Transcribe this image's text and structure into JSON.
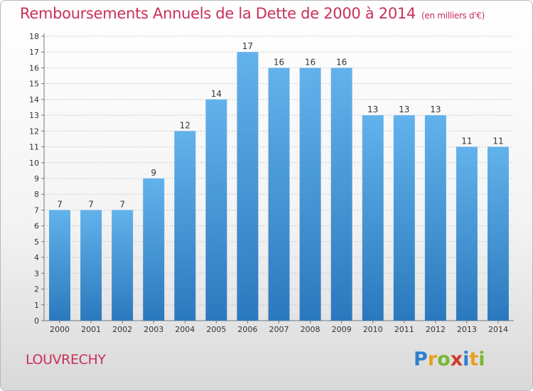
{
  "title": "Remboursements Annuels de la Dette de 2000 à 2014",
  "unit": "(en milliers d'€)",
  "town": "LOUVRECHY",
  "logo": {
    "letters": [
      {
        "ch": "P",
        "color": "#2f7fd0"
      },
      {
        "ch": "r",
        "color": "#e8a020"
      },
      {
        "ch": "o",
        "color": "#7ab830"
      },
      {
        "ch": "x",
        "color": "#d23a2a"
      },
      {
        "ch": "i",
        "color": "#2f7fd0"
      },
      {
        "ch": "t",
        "color": "#e8a020"
      },
      {
        "ch": "i",
        "color": "#7ab830"
      }
    ]
  },
  "colors": {
    "title": "#c8305a",
    "bar_top": "#62b2ec",
    "bar_bottom": "#2b79bd",
    "grid": "#c8c8c8"
  },
  "chart_data": {
    "type": "bar",
    "title": "Remboursements Annuels de la Dette de 2000 à 2014",
    "xlabel": "",
    "ylabel": "",
    "categories": [
      "2000",
      "2001",
      "2002",
      "2003",
      "2004",
      "2005",
      "2006",
      "2007",
      "2008",
      "2009",
      "2010",
      "2011",
      "2012",
      "2013",
      "2014"
    ],
    "values": [
      7,
      7,
      7,
      9,
      12,
      14,
      17,
      16,
      16,
      16,
      13,
      13,
      13,
      11,
      11
    ],
    "data_labels": [
      "7",
      "7",
      "7",
      "9",
      "12",
      "14",
      "17",
      "16",
      "16",
      "16",
      "13",
      "13",
      "13",
      "11",
      "11"
    ],
    "ylim": [
      0,
      18
    ],
    "yticks": [
      "0",
      "1",
      "2",
      "3",
      "4",
      "5",
      "6",
      "7",
      "8",
      "9",
      "10",
      "11",
      "12",
      "13",
      "14",
      "15",
      "16",
      "17",
      "18"
    ],
    "grid": true,
    "legend": "none"
  }
}
